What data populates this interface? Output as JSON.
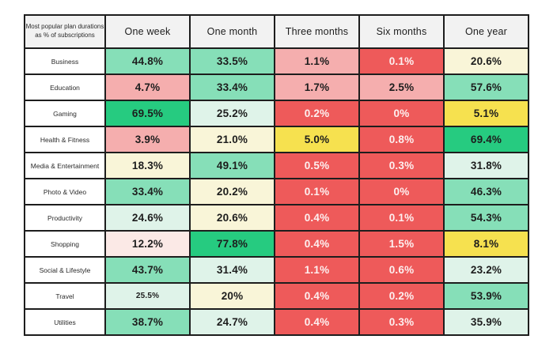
{
  "chart_data": {
    "type": "heatmap",
    "title": "Most popular plan durations as % of subscriptions",
    "corner_label": "Most popular plan durations as % of subscriptions",
    "legend": "none",
    "grid": "on",
    "columns": [
      "One week",
      "One month",
      "Three months",
      "Six months",
      "One year"
    ],
    "rows": [
      {
        "label": "Business",
        "cells": [
          {
            "value": "44.8%",
            "color": "green"
          },
          {
            "value": "33.5%",
            "color": "green"
          },
          {
            "value": "1.1%",
            "color": "pink"
          },
          {
            "value": "0.1%",
            "color": "red"
          },
          {
            "value": "20.6%",
            "color": "cream"
          }
        ]
      },
      {
        "label": "Education",
        "cells": [
          {
            "value": "4.7%",
            "color": "pink"
          },
          {
            "value": "33.4%",
            "color": "green"
          },
          {
            "value": "1.7%",
            "color": "pink"
          },
          {
            "value": "2.5%",
            "color": "pink"
          },
          {
            "value": "57.6%",
            "color": "green"
          }
        ]
      },
      {
        "label": "Gaming",
        "cells": [
          {
            "value": "69.5%",
            "color": "strong_green"
          },
          {
            "value": "25.2%",
            "color": "mint"
          },
          {
            "value": "0.2%",
            "color": "red"
          },
          {
            "value": "0%",
            "color": "red"
          },
          {
            "value": "5.1%",
            "color": "yellow"
          }
        ]
      },
      {
        "label": "Health & Fitness",
        "cells": [
          {
            "value": "3.9%",
            "color": "pink"
          },
          {
            "value": "21.0%",
            "color": "cream"
          },
          {
            "value": "5.0%",
            "color": "yellow"
          },
          {
            "value": "0.8%",
            "color": "red"
          },
          {
            "value": "69.4%",
            "color": "strong_green"
          }
        ]
      },
      {
        "label": "Media & Entertainment",
        "cells": [
          {
            "value": "18.3%",
            "color": "cream"
          },
          {
            "value": "49.1%",
            "color": "green"
          },
          {
            "value": "0.5%",
            "color": "red"
          },
          {
            "value": "0.3%",
            "color": "red"
          },
          {
            "value": "31.8%",
            "color": "mint"
          }
        ]
      },
      {
        "label": "Photo & Video",
        "cells": [
          {
            "value": "33.4%",
            "color": "green"
          },
          {
            "value": "20.2%",
            "color": "cream"
          },
          {
            "value": "0.1%",
            "color": "red"
          },
          {
            "value": "0%",
            "color": "red"
          },
          {
            "value": "46.3%",
            "color": "green"
          }
        ]
      },
      {
        "label": "Productivity",
        "cells": [
          {
            "value": "24.6%",
            "color": "mint"
          },
          {
            "value": "20.6%",
            "color": "cream"
          },
          {
            "value": "0.4%",
            "color": "red"
          },
          {
            "value": "0.1%",
            "color": "red"
          },
          {
            "value": "54.3%",
            "color": "green"
          }
        ]
      },
      {
        "label": "Shopping",
        "cells": [
          {
            "value": "12.2%",
            "color": "light_pink"
          },
          {
            "value": "77.8%",
            "color": "strong_green"
          },
          {
            "value": "0.4%",
            "color": "red"
          },
          {
            "value": "1.5%",
            "color": "red"
          },
          {
            "value": "8.1%",
            "color": "yellow"
          }
        ]
      },
      {
        "label": "Social & Lifestyle",
        "cells": [
          {
            "value": "43.7%",
            "color": "green"
          },
          {
            "value": "31.4%",
            "color": "mint"
          },
          {
            "value": "1.1%",
            "color": "red"
          },
          {
            "value": "0.6%",
            "color": "red"
          },
          {
            "value": "23.2%",
            "color": "mint"
          }
        ]
      },
      {
        "label": "Travel",
        "cells": [
          {
            "value": "25.5%",
            "color": "mint",
            "small": true
          },
          {
            "value": "20%",
            "color": "cream"
          },
          {
            "value": "0.4%",
            "color": "red"
          },
          {
            "value": "0.2%",
            "color": "red"
          },
          {
            "value": "53.9%",
            "color": "green"
          }
        ]
      },
      {
        "label": "Utilities",
        "cells": [
          {
            "value": "38.7%",
            "color": "green"
          },
          {
            "value": "24.7%",
            "color": "mint"
          },
          {
            "value": "0.4%",
            "color": "red"
          },
          {
            "value": "0.3%",
            "color": "red"
          },
          {
            "value": "35.9%",
            "color": "mint"
          }
        ]
      }
    ],
    "palette": {
      "strong_green": {
        "bg": "#26cb80",
        "text": "#1d1d1d"
      },
      "green": {
        "bg": "#86dfb8",
        "text": "#1d1d1d"
      },
      "mint": {
        "bg": "#dff3e9",
        "text": "#1d1d1d"
      },
      "cream": {
        "bg": "#f9f5d8",
        "text": "#1d1d1d"
      },
      "yellow": {
        "bg": "#f6e14f",
        "text": "#1d1d1d"
      },
      "pink": {
        "bg": "#f5aeae",
        "text": "#1d1d1d"
      },
      "light_pink": {
        "bg": "#fbe9e6",
        "text": "#1d1d1d"
      },
      "red": {
        "bg": "#ee5a5a",
        "text": "#fdf0f0"
      }
    },
    "border_color": "#1d1d1d",
    "header_bg": "#f2f2f2"
  }
}
